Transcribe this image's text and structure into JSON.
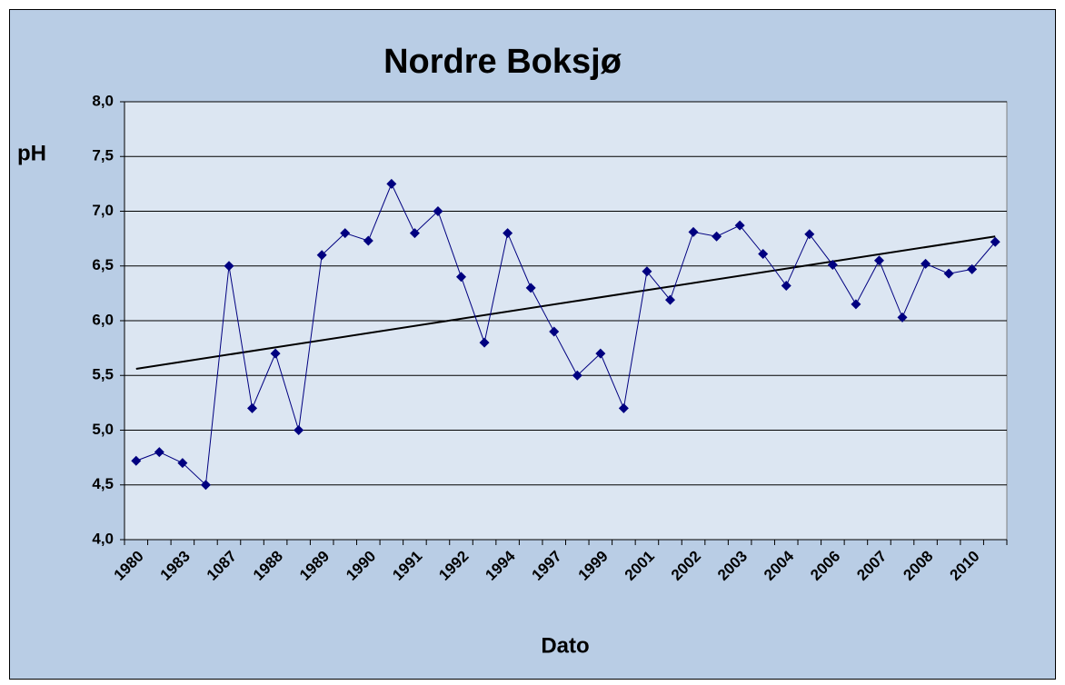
{
  "chart_data": {
    "type": "line",
    "title": "Nordre Boksjø",
    "y_label": "pH",
    "x_label": "Dato",
    "categories": [
      "1980",
      null,
      "1983",
      null,
      "1087",
      null,
      "1988",
      null,
      "1989",
      null,
      "1990",
      null,
      "1991",
      null,
      "1992",
      null,
      "1994",
      null,
      "1997",
      null,
      "1999",
      null,
      "2001",
      null,
      "2002",
      null,
      "2003",
      null,
      "2004",
      null,
      "2006",
      null,
      "2007",
      null,
      "2008",
      null,
      "2010",
      null
    ],
    "series": [
      {
        "name": "pH",
        "color": "#000080",
        "values": [
          4.72,
          4.8,
          4.7,
          4.5,
          6.5,
          5.2,
          5.7,
          5.0,
          6.6,
          6.8,
          6.73,
          7.25,
          6.8,
          7.0,
          6.4,
          5.8,
          6.8,
          6.3,
          5.9,
          5.5,
          5.7,
          5.2,
          6.45,
          6.19,
          6.81,
          6.77,
          6.87,
          6.61,
          6.32,
          6.79,
          6.51,
          6.15,
          6.55,
          6.03,
          6.52,
          6.43,
          6.47,
          6.72
        ]
      }
    ],
    "trendline": {
      "color": "#000000",
      "start": 5.56,
      "end": 6.77
    },
    "ylim": [
      4.0,
      8.0
    ],
    "yticks": [
      {
        "value": 4.0,
        "label": "4,0"
      },
      {
        "value": 4.5,
        "label": "4,5"
      },
      {
        "value": 5.0,
        "label": "5,0"
      },
      {
        "value": 5.5,
        "label": "5,5"
      },
      {
        "value": 6.0,
        "label": "6,0"
      },
      {
        "value": 6.5,
        "label": "6,5"
      },
      {
        "value": 7.0,
        "label": "7,0"
      },
      {
        "value": 7.5,
        "label": "7,5"
      },
      {
        "value": 8.0,
        "label": "8,0"
      }
    ],
    "grid": true
  }
}
